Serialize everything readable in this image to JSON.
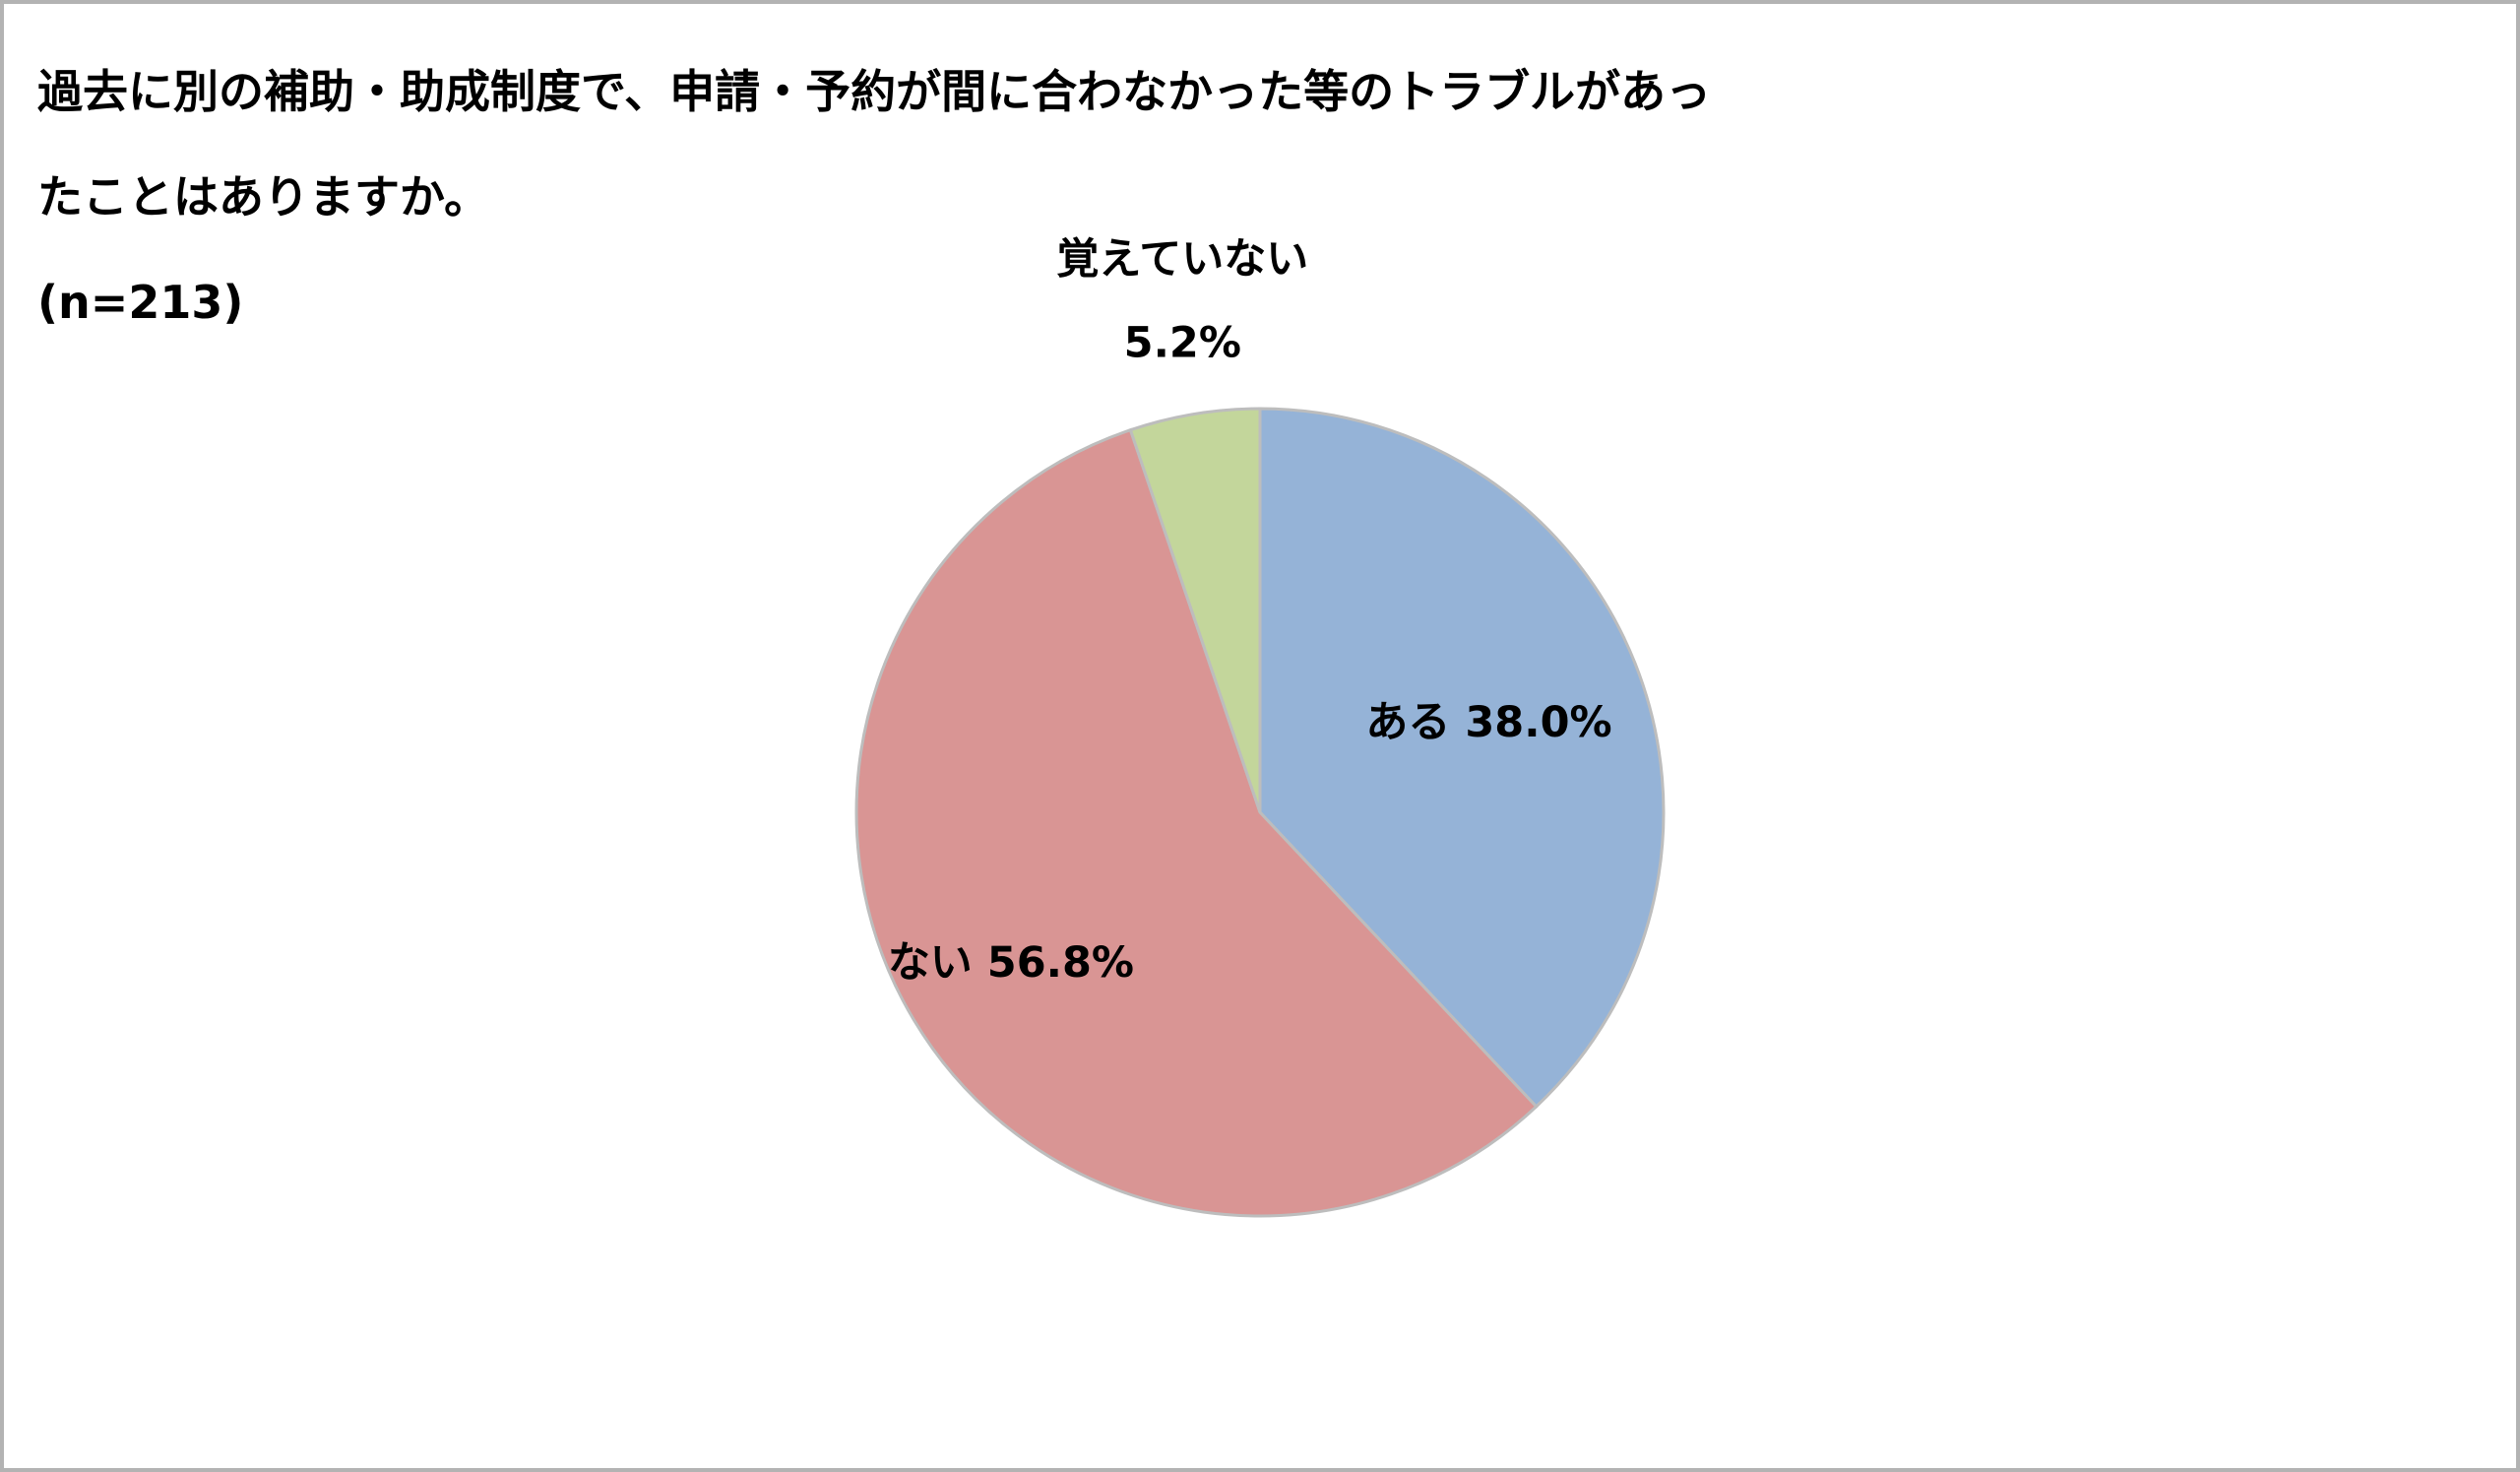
{
  "title_lines": [
    "過去に別の補助・助成制度で、申請・予約が間に合わなかった等のトラブルがあっ",
    "たことはありますか。",
    "(n=213)"
  ],
  "chart_data": {
    "type": "pie",
    "title": "過去に別の補助・助成制度で、申請・予約が間に合わなかった等のトラブルがあったことはありますか。",
    "subtitle": "(n=213)",
    "unit": "%",
    "start_angle_deg": 0,
    "direction": "clockwise",
    "legend": "none",
    "slices": [
      {
        "category": "ある",
        "value": 38.0,
        "value_label": "38.0%",
        "color": "#95b3d7"
      },
      {
        "category": "ない",
        "value": 56.8,
        "value_label": "56.8%",
        "color": "#d99594"
      },
      {
        "category": "覚えていない",
        "value": 5.2,
        "value_label": "5.2%",
        "color": "#c3d69b"
      }
    ]
  }
}
